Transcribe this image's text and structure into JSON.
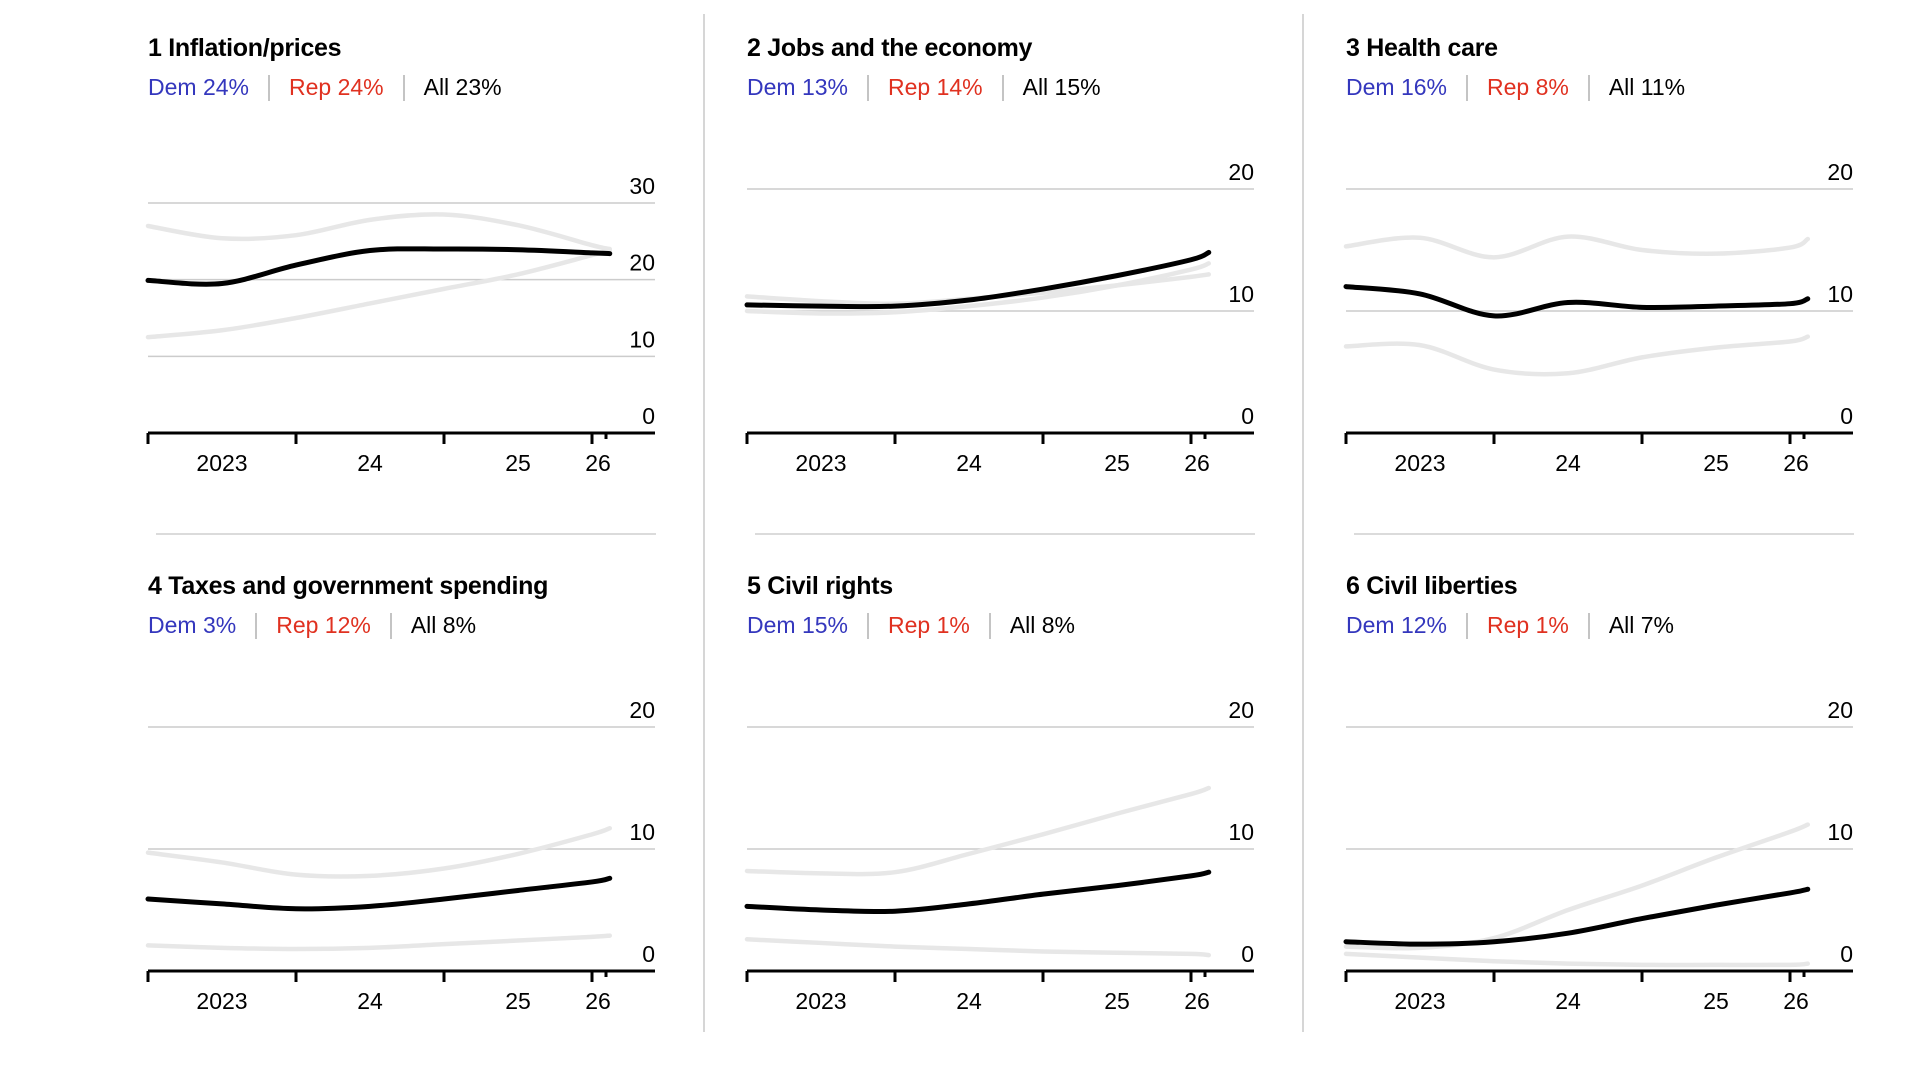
{
  "colors": {
    "dem": "#3437bd",
    "rep": "#e03120",
    "all": "#000000",
    "muted_series": "#e7e7e7",
    "gridline": "#cccccc",
    "axis": "#000000",
    "divider": "#d6d6d6"
  },
  "chart_data": [
    {
      "type": "line",
      "title": "1 Inflation/prices",
      "legend": {
        "dem": "Dem 24%",
        "rep": "Rep 24%",
        "all": "All 23%"
      },
      "x": [
        2023,
        2023.5,
        2024,
        2024.5,
        2025,
        2025.5,
        2026,
        2026.12
      ],
      "series": [
        {
          "name": "Dem",
          "color_role": "dem_muted",
          "values": [
            12.5,
            13.4,
            15.0,
            16.9,
            18.8,
            20.7,
            23.2,
            23.8
          ]
        },
        {
          "name": "Rep",
          "color_role": "rep_muted",
          "values": [
            27.0,
            25.4,
            25.8,
            27.8,
            28.5,
            27.1,
            24.5,
            24.0
          ]
        },
        {
          "name": "All",
          "color_role": "all",
          "values": [
            19.9,
            19.5,
            21.9,
            23.8,
            24.0,
            23.9,
            23.5,
            23.4
          ]
        }
      ],
      "ylim": [
        0,
        30
      ],
      "yticks": [
        30,
        20,
        10,
        0
      ],
      "xtick_labels": [
        "2023",
        "24",
        "25",
        "26"
      ],
      "grid": true
    },
    {
      "type": "line",
      "title": "2 Jobs and the economy",
      "legend": {
        "dem": "Dem 13%",
        "rep": "Rep 14%",
        "all": "All 15%"
      },
      "x": [
        2023,
        2023.5,
        2024,
        2024.5,
        2025,
        2025.5,
        2026,
        2026.12
      ],
      "series": [
        {
          "name": "Dem",
          "color_role": "dem_muted",
          "values": [
            11.2,
            10.8,
            10.6,
            11.0,
            11.5,
            12.1,
            12.8,
            13.0
          ]
        },
        {
          "name": "Rep",
          "color_role": "rep_muted",
          "values": [
            10.0,
            9.8,
            9.9,
            10.4,
            11.1,
            12.1,
            13.4,
            13.9
          ]
        },
        {
          "name": "All",
          "color_role": "all",
          "values": [
            10.5,
            10.4,
            10.4,
            10.9,
            11.8,
            12.9,
            14.2,
            14.8
          ]
        }
      ],
      "ylim": [
        0,
        20
      ],
      "yticks": [
        20,
        10,
        0
      ],
      "xtick_labels": [
        "2023",
        "24",
        "25",
        "26"
      ],
      "grid": true
    },
    {
      "type": "line",
      "title": "3 Health care",
      "legend": {
        "dem": "Dem 16%",
        "rep": "Rep 8%",
        "all": "All 11%"
      },
      "x": [
        2023,
        2023.5,
        2024,
        2024.5,
        2025,
        2025.5,
        2026,
        2026.12
      ],
      "series": [
        {
          "name": "Dem",
          "color_role": "dem_muted",
          "values": [
            15.3,
            16.0,
            14.4,
            16.1,
            15.0,
            14.7,
            15.2,
            15.9
          ]
        },
        {
          "name": "Rep",
          "color_role": "rep_muted",
          "values": [
            7.1,
            7.2,
            5.2,
            4.9,
            6.2,
            7.0,
            7.5,
            7.9
          ]
        },
        {
          "name": "All",
          "color_role": "all",
          "values": [
            12.0,
            11.4,
            9.6,
            10.7,
            10.3,
            10.4,
            10.6,
            11.0
          ]
        }
      ],
      "ylim": [
        0,
        20
      ],
      "yticks": [
        20,
        10,
        0
      ],
      "xtick_labels": [
        "2023",
        "24",
        "25",
        "26"
      ],
      "grid": true
    },
    {
      "type": "line",
      "title": "4 Taxes and government spending",
      "legend": {
        "dem": "Dem 3%",
        "rep": "Rep 12%",
        "all": "All 8%"
      },
      "x": [
        2023,
        2023.5,
        2024,
        2024.5,
        2025,
        2025.5,
        2026,
        2026.12
      ],
      "series": [
        {
          "name": "Dem",
          "color_role": "dem_muted",
          "values": [
            2.1,
            1.9,
            1.8,
            1.9,
            2.2,
            2.5,
            2.8,
            2.9
          ]
        },
        {
          "name": "Rep",
          "color_role": "rep_muted",
          "values": [
            9.7,
            8.9,
            7.9,
            7.8,
            8.4,
            9.6,
            11.2,
            11.7
          ]
        },
        {
          "name": "All",
          "color_role": "all",
          "values": [
            5.9,
            5.5,
            5.1,
            5.3,
            5.9,
            6.6,
            7.3,
            7.6
          ]
        }
      ],
      "ylim": [
        0,
        20
      ],
      "yticks": [
        20,
        10,
        0
      ],
      "xtick_labels": [
        "2023",
        "24",
        "25",
        "26"
      ],
      "grid": true
    },
    {
      "type": "line",
      "title": "5 Civil rights",
      "legend": {
        "dem": "Dem 15%",
        "rep": "Rep 1%",
        "all": "All 8%"
      },
      "x": [
        2023,
        2023.5,
        2024,
        2024.5,
        2025,
        2025.5,
        2026,
        2026.12
      ],
      "series": [
        {
          "name": "Dem",
          "color_role": "dem_muted",
          "values": [
            8.2,
            8.0,
            8.1,
            9.6,
            11.2,
            12.9,
            14.5,
            15.0
          ]
        },
        {
          "name": "Rep",
          "color_role": "rep_muted",
          "values": [
            2.6,
            2.3,
            2.0,
            1.8,
            1.6,
            1.5,
            1.4,
            1.3
          ]
        },
        {
          "name": "All",
          "color_role": "all",
          "values": [
            5.3,
            5.0,
            4.9,
            5.5,
            6.3,
            7.0,
            7.8,
            8.1
          ]
        }
      ],
      "ylim": [
        0,
        20
      ],
      "yticks": [
        20,
        10,
        0
      ],
      "xtick_labels": [
        "2023",
        "24",
        "25",
        "26"
      ],
      "grid": true
    },
    {
      "type": "line",
      "title": "6 Civil liberties",
      "legend": {
        "dem": "Dem 12%",
        "rep": "Rep 1%",
        "all": "All 7%"
      },
      "x": [
        2023,
        2023.5,
        2024,
        2024.5,
        2025,
        2025.5,
        2026,
        2026.12
      ],
      "series": [
        {
          "name": "Dem",
          "color_role": "dem_muted",
          "values": [
            2.0,
            1.9,
            2.7,
            5.0,
            7.0,
            9.3,
            11.4,
            12.0
          ]
        },
        {
          "name": "Rep",
          "color_role": "rep_muted",
          "values": [
            1.4,
            1.1,
            0.8,
            0.6,
            0.5,
            0.5,
            0.5,
            0.6
          ]
        },
        {
          "name": "All",
          "color_role": "all",
          "values": [
            2.4,
            2.2,
            2.4,
            3.1,
            4.3,
            5.4,
            6.4,
            6.7
          ]
        }
      ],
      "ylim": [
        0,
        20
      ],
      "yticks": [
        20,
        10,
        0
      ],
      "xtick_labels": [
        "2023",
        "24",
        "25",
        "26"
      ],
      "grid": true
    }
  ]
}
